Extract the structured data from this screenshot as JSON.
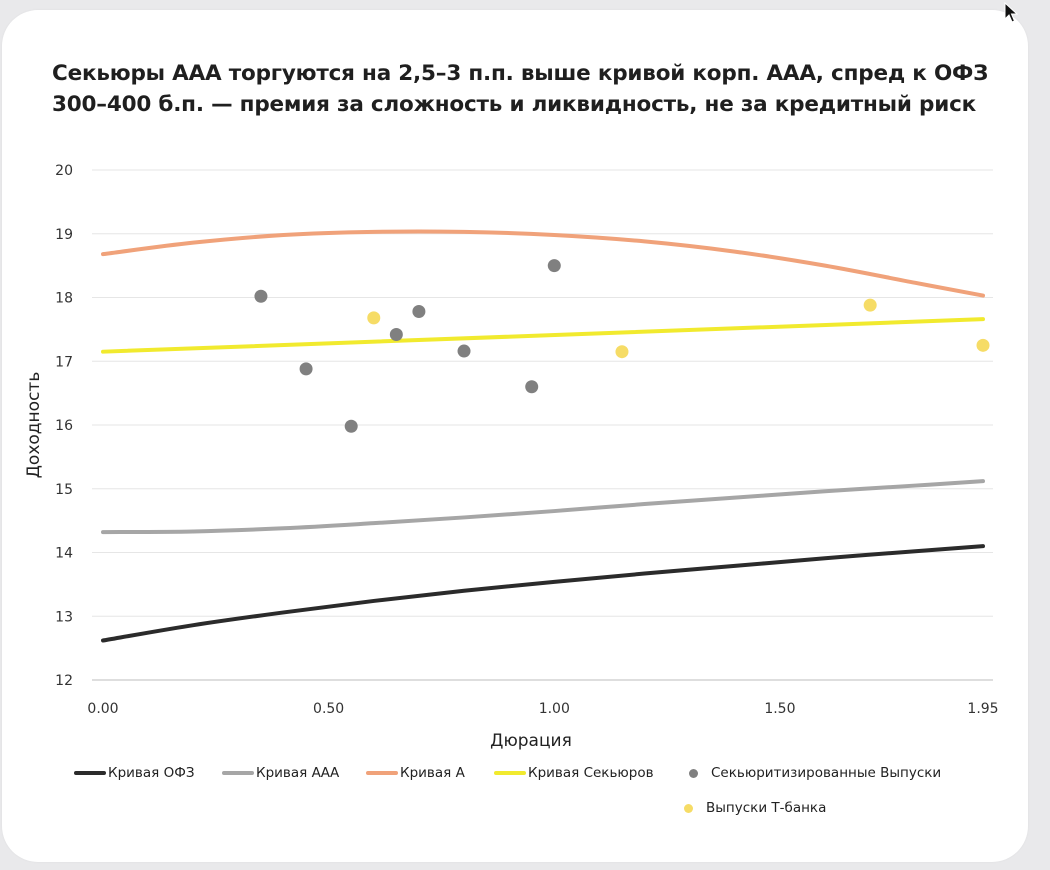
{
  "title_lines": [
    "Секьюры ААА торгуются на 2,5–3 п.п. выше кривой корп. ААА, спред к ОФЗ",
    "300–400 б.п. — премия за сложность и ликвидность, не за кредитный риск"
  ],
  "chart_data": {
    "type": "scatter",
    "title": "Секьюры ААА торгуются на 2,5–3 п.п. выше кривой корп. ААА, спред к ОФЗ 300–400 б.п. — премия за сложность и ликвидность, не за кредитный риск",
    "xlabel": "Дюрация",
    "ylabel": "Доходность",
    "xlim": [
      0,
      1.95
    ],
    "ylim": [
      12,
      20
    ],
    "x_ticks": [
      "0.00",
      "0.50",
      "1.00",
      "1.50",
      "1.95"
    ],
    "x_tick_values": [
      0,
      0.5,
      1.0,
      1.5,
      1.95
    ],
    "y_ticks": [
      12,
      13,
      14,
      15,
      16,
      17,
      18,
      19,
      20
    ],
    "grid": "horizontal",
    "legend_position": "bottom",
    "series": [
      {
        "name": "Кривая ОФЗ",
        "kind": "line",
        "color": "#2b2b2b",
        "x": [
          0,
          0.2,
          0.4,
          0.6,
          0.8,
          1.0,
          1.2,
          1.4,
          1.6,
          1.8,
          1.95
        ],
        "y": [
          12.62,
          12.86,
          13.06,
          13.24,
          13.4,
          13.54,
          13.67,
          13.79,
          13.91,
          14.02,
          14.1
        ]
      },
      {
        "name": "Кривая ААА",
        "kind": "line",
        "color": "#a6a6a6",
        "x": [
          0,
          0.2,
          0.4,
          0.6,
          0.8,
          1.0,
          1.2,
          1.4,
          1.6,
          1.8,
          1.95
        ],
        "y": [
          14.32,
          14.33,
          14.38,
          14.46,
          14.55,
          14.65,
          14.76,
          14.86,
          14.96,
          15.05,
          15.12
        ]
      },
      {
        "name": "Кривая А",
        "kind": "line",
        "color": "#f0a27a",
        "x": [
          0,
          0.2,
          0.4,
          0.6,
          0.8,
          1.0,
          1.2,
          1.4,
          1.6,
          1.8,
          1.95
        ],
        "y": [
          18.68,
          18.86,
          18.98,
          19.03,
          19.03,
          18.98,
          18.88,
          18.72,
          18.5,
          18.23,
          18.03
        ]
      },
      {
        "name": "Кривая Секьюров",
        "kind": "line",
        "color": "#f1ea2e",
        "x": [
          0,
          1.95
        ],
        "y": [
          17.15,
          17.66
        ]
      },
      {
        "name": "Секьюритизированные Выпуски",
        "kind": "scatter",
        "color": "#808080",
        "x": [
          0.35,
          0.45,
          0.55,
          0.65,
          0.7,
          0.8,
          0.95,
          1.0
        ],
        "y": [
          18.02,
          16.88,
          15.98,
          17.42,
          17.78,
          17.16,
          16.6,
          18.5
        ]
      },
      {
        "name": "Выпуски Т-банка",
        "kind": "scatter",
        "color": "#f6dc66",
        "x": [
          0.6,
          1.15,
          1.7,
          1.95
        ],
        "y": [
          17.68,
          17.15,
          17.88,
          17.25
        ]
      }
    ]
  },
  "icons": {
    "cursor": "mouse-pointer-icon"
  }
}
